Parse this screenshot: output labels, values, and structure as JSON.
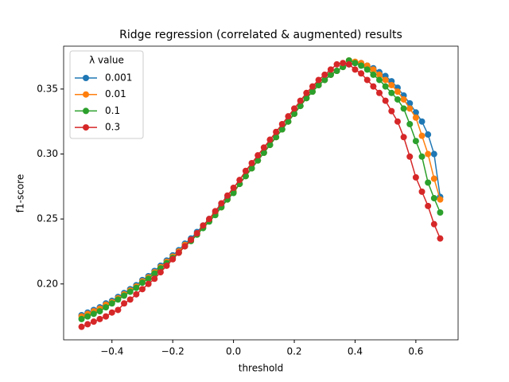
{
  "chart_data": {
    "type": "line",
    "title": "Ridge regression (correlated & augmented) results",
    "x_label": "threshold",
    "y_label": "f1-score",
    "legend": {
      "title": "λ value",
      "position": "upper left"
    },
    "x": [
      -0.5,
      -0.48,
      -0.46,
      -0.44,
      -0.42,
      -0.4,
      -0.38,
      -0.36,
      -0.34,
      -0.32,
      -0.3,
      -0.28,
      -0.26,
      -0.24,
      -0.22,
      -0.2,
      -0.18,
      -0.16,
      -0.14,
      -0.12,
      -0.1,
      -0.08,
      -0.06,
      -0.04,
      -0.02,
      0,
      0.02,
      0.04,
      0.06,
      0.08,
      0.1,
      0.12,
      0.14,
      0.16,
      0.18,
      0.2,
      0.22,
      0.24,
      0.26,
      0.28,
      0.3,
      0.32,
      0.34,
      0.36,
      0.38,
      0.4,
      0.42,
      0.44,
      0.46,
      0.48,
      0.5,
      0.52,
      0.54,
      0.56,
      0.58,
      0.6,
      0.62,
      0.64,
      0.66,
      0.68
    ],
    "series": [
      {
        "name": "0.001",
        "color": "#1f77b4",
        "values": [
          0.176,
          0.178,
          0.18,
          0.182,
          0.185,
          0.187,
          0.19,
          0.193,
          0.196,
          0.199,
          0.203,
          0.206,
          0.21,
          0.214,
          0.218,
          0.222,
          0.226,
          0.231,
          0.235,
          0.24,
          0.245,
          0.25,
          0.255,
          0.26,
          0.266,
          0.271,
          0.277,
          0.283,
          0.289,
          0.295,
          0.301,
          0.307,
          0.313,
          0.319,
          0.325,
          0.331,
          0.337,
          0.343,
          0.348,
          0.353,
          0.357,
          0.361,
          0.364,
          0.367,
          0.369,
          0.37,
          0.37,
          0.368,
          0.366,
          0.363,
          0.36,
          0.356,
          0.351,
          0.345,
          0.339,
          0.332,
          0.325,
          0.315,
          0.3,
          0.267
        ]
      },
      {
        "name": "0.01",
        "color": "#ff7f0e",
        "values": [
          0.175,
          0.177,
          0.179,
          0.181,
          0.184,
          0.186,
          0.189,
          0.192,
          0.195,
          0.198,
          0.202,
          0.205,
          0.209,
          0.213,
          0.217,
          0.221,
          0.225,
          0.23,
          0.234,
          0.239,
          0.244,
          0.249,
          0.254,
          0.259,
          0.265,
          0.271,
          0.277,
          0.283,
          0.289,
          0.295,
          0.301,
          0.307,
          0.313,
          0.319,
          0.325,
          0.331,
          0.337,
          0.343,
          0.348,
          0.353,
          0.357,
          0.361,
          0.364,
          0.367,
          0.372,
          0.371,
          0.37,
          0.368,
          0.365,
          0.361,
          0.357,
          0.353,
          0.348,
          0.342,
          0.335,
          0.328,
          0.314,
          0.3,
          0.281,
          0.265
        ]
      },
      {
        "name": "0.1",
        "color": "#2ca02c",
        "values": [
          0.173,
          0.175,
          0.177,
          0.179,
          0.182,
          0.185,
          0.188,
          0.191,
          0.194,
          0.197,
          0.201,
          0.204,
          0.208,
          0.212,
          0.216,
          0.22,
          0.224,
          0.229,
          0.233,
          0.238,
          0.243,
          0.248,
          0.253,
          0.259,
          0.265,
          0.27,
          0.277,
          0.283,
          0.289,
          0.295,
          0.301,
          0.307,
          0.313,
          0.319,
          0.325,
          0.331,
          0.337,
          0.343,
          0.348,
          0.353,
          0.357,
          0.361,
          0.364,
          0.367,
          0.372,
          0.37,
          0.368,
          0.365,
          0.361,
          0.357,
          0.352,
          0.347,
          0.342,
          0.335,
          0.323,
          0.31,
          0.298,
          0.278,
          0.266,
          0.255
        ]
      },
      {
        "name": "0.3",
        "color": "#d62728",
        "values": [
          0.167,
          0.169,
          0.171,
          0.173,
          0.175,
          0.178,
          0.18,
          0.185,
          0.188,
          0.192,
          0.196,
          0.2,
          0.204,
          0.209,
          0.214,
          0.219,
          0.224,
          0.229,
          0.234,
          0.239,
          0.245,
          0.25,
          0.256,
          0.262,
          0.268,
          0.274,
          0.28,
          0.287,
          0.293,
          0.299,
          0.305,
          0.311,
          0.317,
          0.323,
          0.329,
          0.335,
          0.341,
          0.347,
          0.352,
          0.357,
          0.361,
          0.365,
          0.369,
          0.37,
          0.369,
          0.365,
          0.362,
          0.357,
          0.352,
          0.347,
          0.341,
          0.333,
          0.325,
          0.313,
          0.298,
          0.282,
          0.271,
          0.26,
          0.246,
          0.235
        ]
      }
    ],
    "xlim": [
      -0.559,
      0.739
    ],
    "xticks": [
      {
        "value": -0.4,
        "label": "−0.4"
      },
      {
        "value": -0.2,
        "label": "−0.2"
      },
      {
        "value": 0,
        "label": "0.0"
      },
      0.2,
      0.4,
      0.6
    ],
    "ylim": [
      0.157,
      0.383
    ],
    "yticks": [
      {
        "value": 0.2,
        "label": "0.20"
      },
      0.25,
      {
        "value": 0.3,
        "label": "0.30"
      },
      0.35
    ],
    "grid": false
  }
}
